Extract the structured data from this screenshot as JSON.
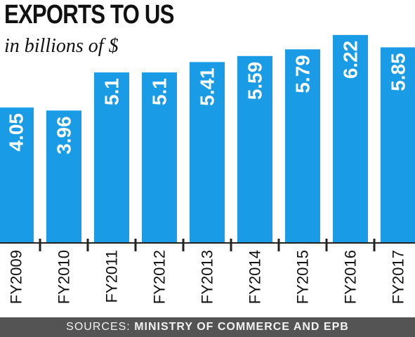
{
  "chart_data": {
    "type": "bar",
    "title": "EXPORTS TO US",
    "subtitle": "in billions of $",
    "categories": [
      "FY2009",
      "FY2010",
      "FY2011",
      "FY2012",
      "FY2013",
      "FY2014",
      "FY2015",
      "FY2016",
      "FY2017"
    ],
    "value_labels": [
      "4.05",
      "3.96",
      "5.1",
      "5.1",
      "5.41",
      "5.59",
      "5.79",
      "6.22",
      "5.85"
    ],
    "values": [
      4.05,
      3.96,
      5.1,
      5.1,
      5.41,
      5.59,
      5.79,
      6.22,
      5.85
    ],
    "ylim": [
      0,
      6.3
    ],
    "xlabel": "",
    "ylabel": "",
    "grid": false,
    "bar_color": "#1a9be6",
    "value_label_color": "#ffffff"
  },
  "source": {
    "prefix": "SOURCES:",
    "organizations": "MINISTRY OF COMMERCE AND EPB"
  }
}
